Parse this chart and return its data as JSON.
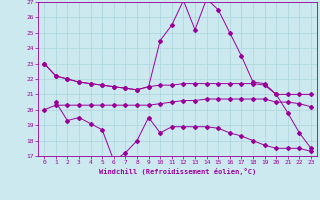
{
  "xlabel": "Windchill (Refroidissement éolien,°C)",
  "background_color": "#cde9f0",
  "line_color": "#990099",
  "grid_color": "#aad4dd",
  "ylim": [
    17,
    27
  ],
  "xlim": [
    -0.5,
    23.5
  ],
  "yticks": [
    17,
    18,
    19,
    20,
    21,
    22,
    23,
    24,
    25,
    26,
    27
  ],
  "xticks": [
    0,
    1,
    2,
    3,
    4,
    5,
    6,
    7,
    8,
    9,
    10,
    11,
    12,
    13,
    14,
    15,
    16,
    17,
    18,
    19,
    20,
    21,
    22,
    23
  ],
  "line1_x": [
    0,
    1,
    2,
    3,
    4,
    5,
    6,
    7,
    8,
    9,
    10,
    11,
    12,
    13,
    14,
    15,
    16,
    17,
    18,
    19,
    20,
    21,
    22,
    23
  ],
  "line1_y": [
    23.0,
    22.2,
    22.0,
    21.8,
    21.7,
    21.6,
    21.5,
    21.4,
    21.3,
    21.5,
    21.6,
    21.6,
    21.7,
    21.7,
    21.7,
    21.7,
    21.7,
    21.7,
    21.7,
    21.6,
    21.0,
    21.0,
    21.0,
    21.0
  ],
  "line2_x": [
    0,
    1,
    2,
    3,
    4,
    5,
    6,
    7,
    8,
    9,
    10,
    11,
    12,
    13,
    14,
    15,
    16,
    17,
    18,
    19,
    20,
    21,
    22,
    23
  ],
  "line2_y": [
    23.0,
    22.2,
    22.0,
    21.8,
    21.7,
    21.6,
    21.5,
    21.4,
    21.3,
    21.5,
    24.5,
    25.5,
    27.1,
    25.2,
    27.2,
    26.5,
    25.0,
    23.5,
    21.8,
    21.7,
    21.0,
    19.8,
    18.5,
    17.5
  ],
  "line3_x": [
    0,
    1,
    2,
    3,
    4,
    5,
    6,
    7,
    8,
    9,
    10,
    11,
    12,
    13,
    14,
    15,
    16,
    17,
    18,
    19,
    20,
    21,
    22,
    23
  ],
  "line3_y": [
    20.0,
    20.3,
    20.3,
    20.3,
    20.3,
    20.3,
    20.3,
    20.3,
    20.3,
    20.3,
    20.4,
    20.5,
    20.6,
    20.6,
    20.7,
    20.7,
    20.7,
    20.7,
    20.7,
    20.7,
    20.5,
    20.5,
    20.4,
    20.2
  ],
  "line4_x": [
    1,
    2,
    3,
    4,
    5,
    6,
    7,
    8,
    9,
    10,
    11,
    12,
    13,
    14,
    15,
    16,
    17,
    18,
    19,
    20,
    21,
    22,
    23
  ],
  "line4_y": [
    20.5,
    19.3,
    19.5,
    19.1,
    18.7,
    16.7,
    17.2,
    18.0,
    19.5,
    18.5,
    18.9,
    18.9,
    18.9,
    18.9,
    18.8,
    18.5,
    18.3,
    18.0,
    17.7,
    17.5,
    17.5,
    17.5,
    17.3
  ]
}
